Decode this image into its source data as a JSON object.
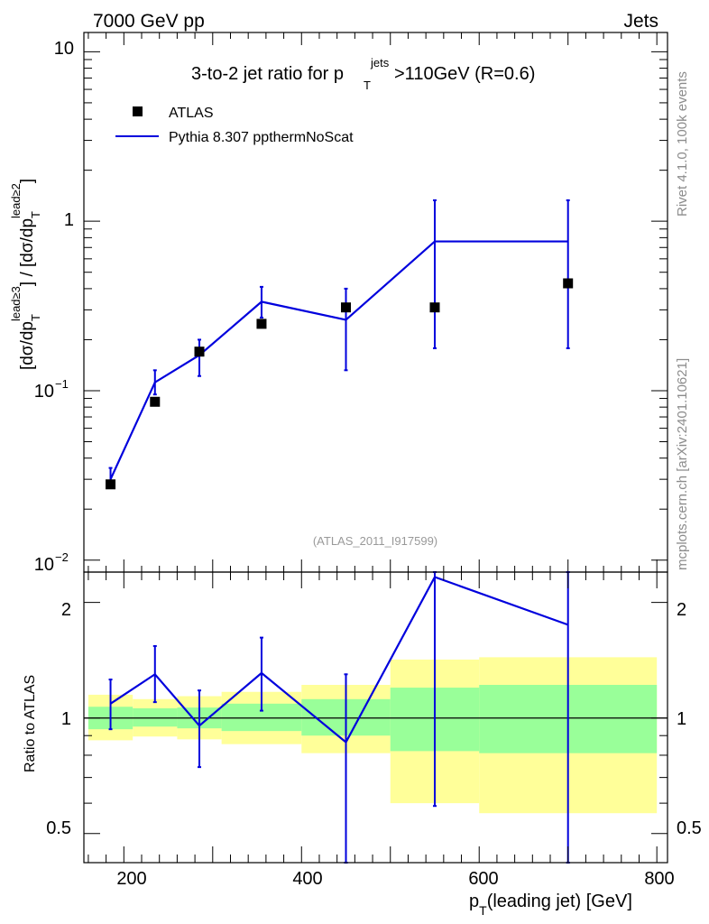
{
  "header": {
    "left": "7000 GeV pp",
    "right": "Jets"
  },
  "side_labels": {
    "rivet": "Rivet 4.1.0,  100k events",
    "source": "mcplots.cern.ch [arXiv:2401.10621]"
  },
  "chart_data": [
    {
      "type": "scatter+line",
      "panel": "main",
      "title": "3-to-2 jet ratio for p_T^jets >110GeV (R=0.6)",
      "title_parts": {
        "prefix": "3-to-2 jet ratio for p",
        "sub": "T",
        "sup": "jets",
        "suffix": ">110GeV (R=0.6)"
      },
      "ylabel": "[dσ/dp_T^lead≥3] / [dσ/dp_T^lead≥2]",
      "ylabel_parts": {
        "a": "[dσ/dp",
        "sub": "T",
        "sup1": "lead≥3",
        "b": "] / [dσ/dp",
        "sup2": "lead≥2",
        "c": "]"
      },
      "yscale": "log",
      "ylim": [
        0.0085,
        13
      ],
      "xlim": [
        155,
        812
      ],
      "ytick_labels": [
        {
          "value": 10,
          "base": "10",
          "exp": ""
        },
        {
          "value": 1,
          "base": "1",
          "exp": ""
        },
        {
          "value": 0.1,
          "base": "10",
          "exp": "−1"
        },
        {
          "value": 0.01,
          "base": "10",
          "exp": "−2"
        }
      ],
      "watermark": "(ATLAS_2011_I917599)",
      "legend": {
        "placement": "top-left",
        "entries": [
          "ATLAS",
          "Pythia 8.307 ppthermNoScat"
        ]
      },
      "series": [
        {
          "name": "ATLAS",
          "style": "marker",
          "color": "#000000",
          "x": [
            185,
            235,
            285,
            355,
            450,
            550,
            700
          ],
          "y": [
            0.028,
            0.086,
            0.17,
            0.248,
            0.31,
            0.31,
            0.43
          ]
        },
        {
          "name": "Pythia 8.307 ppthermNoScat",
          "style": "line",
          "color": "#0000dd",
          "x": [
            185,
            235,
            285,
            355,
            450,
            550,
            700
          ],
          "y": [
            0.03,
            0.112,
            0.162,
            0.335,
            0.262,
            0.76,
            0.76
          ],
          "err_low": [
            0.027,
            0.095,
            0.122,
            0.27,
            0.132,
            0.178,
            0.178
          ],
          "err_high": [
            0.035,
            0.132,
            0.2,
            0.41,
            0.4,
            1.33,
            1.33
          ],
          "step_end_x": 700
        }
      ]
    },
    {
      "type": "ratio",
      "panel": "ratio",
      "ylabel": "Ratio to ATLAS",
      "xlabel": "p_T(leading jet) [GeV]",
      "xlabel_parts": {
        "a": "p",
        "sub": "T",
        "b": "(leading jet) [GeV]"
      },
      "yscale": "log",
      "ylim": [
        0.42,
        2.4
      ],
      "xlim": [
        155,
        812
      ],
      "xtick_labels": [
        200,
        400,
        600,
        800
      ],
      "ytick_labels": [
        {
          "value": 2,
          "label": "2"
        },
        {
          "value": 1,
          "label": "1"
        },
        {
          "value": 0.5,
          "label": "0.5"
        }
      ],
      "bands": [
        {
          "x0": 160,
          "x1": 210,
          "yellow": [
            0.875,
            1.15
          ],
          "green": [
            0.935,
            1.07
          ]
        },
        {
          "x0": 210,
          "x1": 260,
          "yellow": [
            0.895,
            1.12
          ],
          "green": [
            0.95,
            1.06
          ]
        },
        {
          "x0": 260,
          "x1": 310,
          "yellow": [
            0.88,
            1.14
          ],
          "green": [
            0.94,
            1.065
          ]
        },
        {
          "x0": 310,
          "x1": 400,
          "yellow": [
            0.855,
            1.17
          ],
          "green": [
            0.925,
            1.09
          ]
        },
        {
          "x0": 400,
          "x1": 500,
          "yellow": [
            0.81,
            1.22
          ],
          "green": [
            0.9,
            1.12
          ]
        },
        {
          "x0": 500,
          "x1": 600,
          "yellow": [
            0.6,
            1.42
          ],
          "green": [
            0.82,
            1.2
          ]
        },
        {
          "x0": 600,
          "x1": 800,
          "yellow": [
            0.565,
            1.44
          ],
          "green": [
            0.81,
            1.22
          ]
        }
      ],
      "band_colors": {
        "yellow": "#ffff99",
        "green": "#99ff99",
        "reference": "#000000"
      },
      "series": [
        {
          "name": "Pythia 8.307 ppthermNoScat / ATLAS",
          "color": "#0000dd",
          "x": [
            185,
            235,
            285,
            355,
            450,
            550,
            700
          ],
          "y": [
            1.09,
            1.3,
            0.955,
            1.31,
            0.865,
            2.33,
            1.75
          ],
          "err_low": [
            0.935,
            1.1,
            0.745,
            1.045,
            0.38,
            0.59,
            0.37
          ],
          "err_high": [
            1.26,
            1.54,
            1.18,
            1.62,
            1.3,
            2.4,
            2.4
          ]
        }
      ]
    }
  ]
}
